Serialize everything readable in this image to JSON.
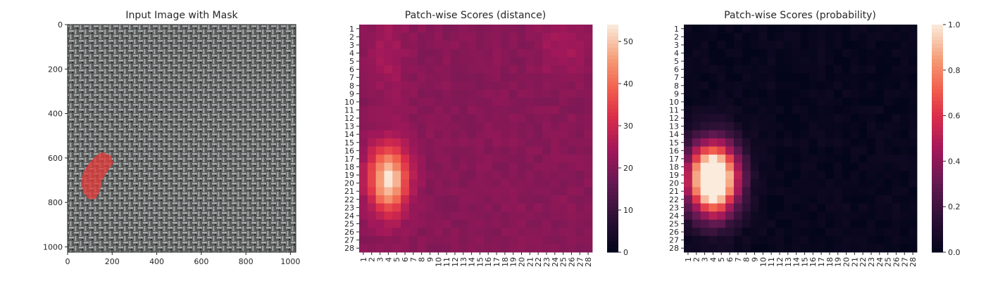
{
  "chart_data": [
    {
      "type": "image",
      "title": "Input Image with Mask",
      "xticks": [
        0,
        200,
        400,
        600,
        800,
        1000
      ],
      "yticks": [
        0,
        200,
        400,
        600,
        800,
        1000
      ],
      "xlim": [
        0,
        1024
      ],
      "ylim": [
        1024,
        0
      ],
      "texture_colors": {
        "base": "#5a5a5a",
        "weave_light": "#a6aaaa",
        "weave_dark": "#262828"
      },
      "mask": {
        "color": "#e63a3a",
        "outline": [
          [
            160,
            575
          ],
          [
            195,
            590
          ],
          [
            205,
            625
          ],
          [
            185,
            650
          ],
          [
            155,
            700
          ],
          [
            145,
            750
          ],
          [
            125,
            785
          ],
          [
            95,
            785
          ],
          [
            70,
            755
          ],
          [
            60,
            710
          ],
          [
            70,
            665
          ],
          [
            95,
            625
          ],
          [
            120,
            598
          ],
          [
            140,
            580
          ]
        ]
      }
    },
    {
      "type": "heatmap",
      "title": "Patch-wise Scores (distance)",
      "rows": 28,
      "cols": 28,
      "xticklabels": [
        "1",
        "2",
        "3",
        "4",
        "5",
        "6",
        "7",
        "8",
        "9",
        "10",
        "11",
        "12",
        "13",
        "14",
        "15",
        "16",
        "17",
        "18",
        "19",
        "20",
        "21",
        "22",
        "23",
        "24",
        "25",
        "26",
        "27",
        "28"
      ],
      "yticklabels": [
        "1",
        "2",
        "3",
        "4",
        "5",
        "6",
        "7",
        "8",
        "9",
        "10",
        "11",
        "12",
        "13",
        "14",
        "15",
        "16",
        "17",
        "18",
        "19",
        "20",
        "21",
        "22",
        "23",
        "24",
        "25",
        "26",
        "27",
        "28"
      ],
      "colorbar": {
        "min": 0,
        "max": 54,
        "ticks": [
          0,
          10,
          20,
          30,
          40,
          50
        ],
        "colormap": "rocket"
      },
      "base_value": 21,
      "hotspots": [
        {
          "row": 19.5,
          "col": 4,
          "sigma_r": 2.9,
          "sigma_c": 1.6,
          "amplitude": 32
        },
        {
          "row": 4,
          "col": 4,
          "sigma_r": 4,
          "sigma_c": 1.5,
          "amplitude": 4
        },
        {
          "row": 3.5,
          "col": 25,
          "sigma_r": 2.5,
          "sigma_c": 2,
          "amplitude": 4
        }
      ]
    },
    {
      "type": "heatmap",
      "title": "Patch-wise Scores (probability)",
      "rows": 28,
      "cols": 28,
      "xticklabels": [
        "1",
        "2",
        "3",
        "4",
        "5",
        "6",
        "7",
        "8",
        "9",
        "10",
        "11",
        "12",
        "13",
        "14",
        "15",
        "16",
        "17",
        "18",
        "19",
        "20",
        "21",
        "22",
        "23",
        "24",
        "25",
        "26",
        "27",
        "28"
      ],
      "yticklabels": [
        "1",
        "2",
        "3",
        "4",
        "5",
        "6",
        "7",
        "8",
        "9",
        "10",
        "11",
        "12",
        "13",
        "14",
        "15",
        "16",
        "17",
        "18",
        "19",
        "20",
        "21",
        "22",
        "23",
        "24",
        "25",
        "26",
        "27",
        "28"
      ],
      "colorbar": {
        "min": 0,
        "max": 1,
        "ticks": [
          "0.0",
          "0.2",
          "0.4",
          "0.6",
          "0.8",
          "1.0"
        ],
        "colormap": "rocket"
      },
      "base_value": 0.02,
      "hotspots": [
        {
          "row": 19.5,
          "col": 4,
          "sigma_r": 3.1,
          "sigma_c": 2.1,
          "amplitude": 1.35
        }
      ]
    }
  ]
}
